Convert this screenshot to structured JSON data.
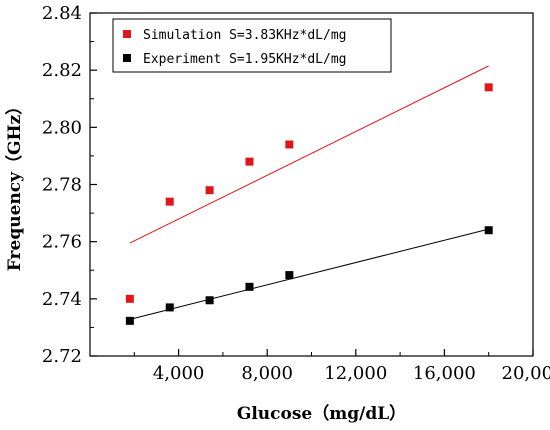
{
  "chart_data": {
    "type": "scatter",
    "xlabel": "Glucose（mg/dL）",
    "ylabel": "Frequency（GHz）",
    "xlim": [
      0,
      20000
    ],
    "ylim": [
      2.72,
      2.84
    ],
    "xticks": [
      4000,
      8000,
      12000,
      16000,
      20000
    ],
    "xtick_labels": [
      "4,000",
      "8,000",
      "12,000",
      "16,000",
      "20,000"
    ],
    "yticks": [
      2.72,
      2.74,
      2.76,
      2.78,
      2.8,
      2.82,
      2.84
    ],
    "ytick_labels": [
      "2.72",
      "2.74",
      "2.76",
      "2.78",
      "2.80",
      "2.82",
      "2.84"
    ],
    "grid": false,
    "legend_position": "top-left",
    "series": [
      {
        "name": "Simulation S=3.83KHz*dL/mg",
        "color": "#e0161b",
        "marker": "square",
        "x": [
          1800,
          3600,
          5400,
          7200,
          9000,
          18000
        ],
        "y": [
          2.74,
          2.774,
          2.778,
          2.788,
          2.794,
          2.814
        ],
        "fit": {
          "x": [
            1800,
            18000
          ],
          "y": [
            2.7595,
            2.8215
          ]
        }
      },
      {
        "name": "Experiment  S=1.95KHz*dL/mg",
        "color": "#000000",
        "marker": "square",
        "x": [
          1800,
          3600,
          5400,
          7200,
          9000,
          18000
        ],
        "y": [
          2.7323,
          2.737,
          2.7395,
          2.7442,
          2.7483,
          2.764
        ],
        "fit": {
          "x": [
            1800,
            18000
          ],
          "y": [
            2.7328,
            2.7644
          ]
        }
      }
    ]
  }
}
